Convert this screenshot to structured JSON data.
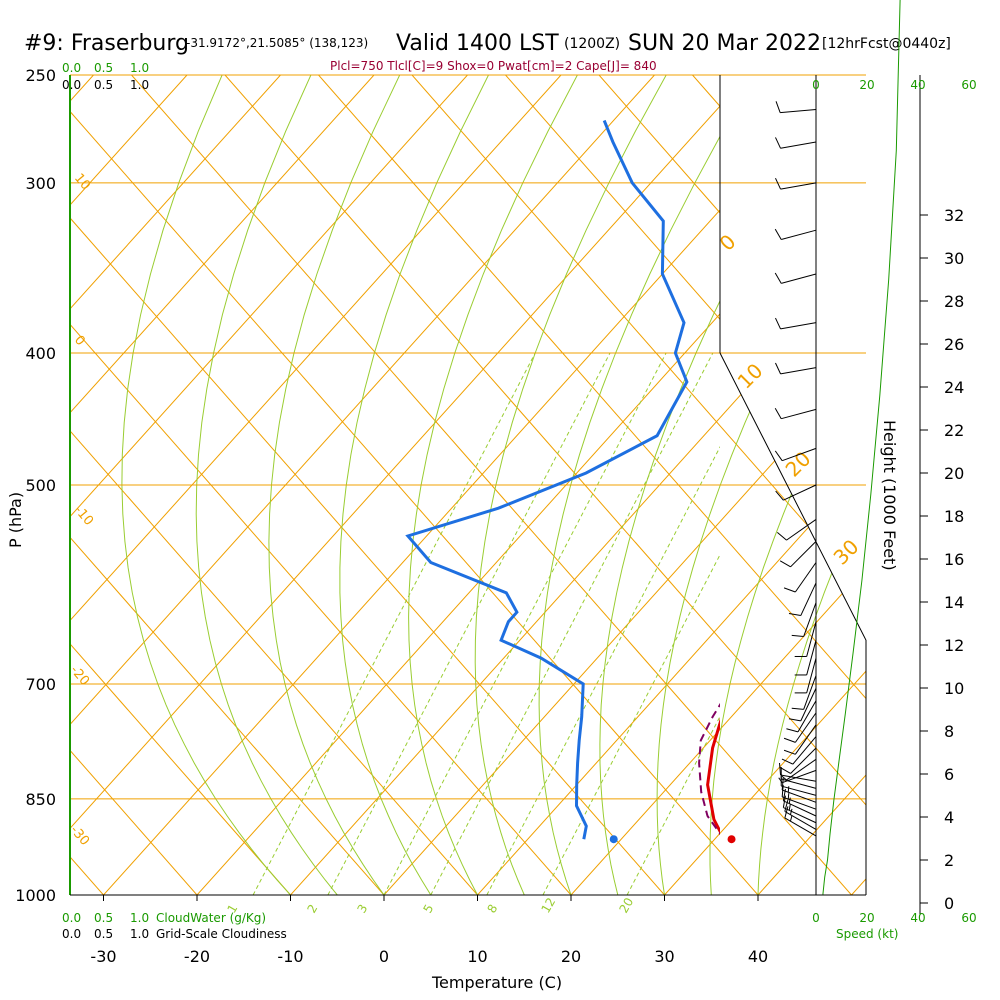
{
  "header": {
    "station": "#9: Fraserburg",
    "coords": "-31.9172°,21.5085° (138,123)",
    "valid": "Valid 1400 LST",
    "utc": "(1200Z)",
    "date": "SUN 20 Mar 2022",
    "forecast": "[12hrFcst@0440z]",
    "indices": "Plcl=750 Tlcl[C]=9 Shox=0 Pwat[cm]=2 Cape[J]= 840"
  },
  "colors": {
    "temperature": "#e00000",
    "dewpoint": "#1e6fe0",
    "parcel": "#800060",
    "isotherm": "#f0a000",
    "dry_adiabat": "#9acd32",
    "mixing_ratio": "#9acd32",
    "wind_speed": "#1a9a00",
    "indices": "#990033"
  },
  "chart_data": {
    "type": "line",
    "title": "#9: Fraserburg",
    "xlabel": "Temperature (C)",
    "ylabel": "P (hPa)",
    "y2label": "Height (1000 Feet)",
    "x_ticks": [
      -30,
      -20,
      -10,
      0,
      10,
      20,
      30,
      40
    ],
    "p_ticks": [
      250,
      300,
      400,
      500,
      700,
      850,
      1000
    ],
    "height_ticks": [
      0,
      2,
      4,
      6,
      8,
      10,
      12,
      14,
      16,
      18,
      20,
      22,
      24,
      26,
      28,
      30,
      32
    ],
    "xlim": [
      -34,
      36
    ],
    "ylim_hpa": [
      1000,
      250
    ],
    "top_scale_labels": [
      "0.0",
      "0.5",
      "1.0"
    ],
    "bottom_cloudwater_label": "CloudWater (g/Kg)",
    "bottom_cloudiness_label": "Grid-Scale Cloudiness",
    "speed_ticks": [
      0,
      20,
      40,
      60
    ],
    "speed_label": "Speed (kt)",
    "mixing_ratio_labels": [
      "1",
      "2",
      "3",
      "5",
      "8",
      "12",
      "20"
    ],
    "dry_adiabat_labels": [
      "10",
      "0",
      "-10",
      "-20",
      "-30"
    ],
    "isotherm_labels": [
      "0",
      "10",
      "20",
      "30"
    ],
    "series": [
      {
        "key": "temperature",
        "points": [
          [
            31,
            910
          ],
          [
            28,
            880
          ],
          [
            24,
            830
          ],
          [
            21,
            780
          ],
          [
            19,
            740
          ],
          [
            17,
            700
          ],
          [
            15,
            660
          ],
          [
            14,
            620
          ],
          [
            12,
            580
          ],
          [
            10,
            540
          ],
          [
            8,
            500
          ],
          [
            6,
            460
          ],
          [
            4,
            420
          ],
          [
            2,
            380
          ],
          [
            -1,
            340
          ],
          [
            -4,
            300
          ],
          [
            -7,
            270
          ]
        ]
      },
      {
        "key": "dewpoint",
        "points": [
          [
            16,
            910
          ],
          [
            15,
            890
          ],
          [
            12,
            860
          ],
          [
            10,
            830
          ],
          [
            8,
            800
          ],
          [
            6,
            770
          ],
          [
            4,
            740
          ],
          [
            1,
            700
          ],
          [
            -6,
            670
          ],
          [
            -12,
            650
          ],
          [
            -13,
            630
          ],
          [
            -13,
            620
          ],
          [
            -16,
            600
          ],
          [
            -27,
            570
          ],
          [
            -32,
            545
          ],
          [
            -25,
            520
          ],
          [
            -19,
            490
          ],
          [
            -15,
            460
          ],
          [
            -17,
            420
          ],
          [
            -21,
            400
          ],
          [
            -23,
            380
          ],
          [
            -30,
            350
          ],
          [
            -35,
            320
          ],
          [
            -42,
            300
          ],
          [
            -48,
            280
          ],
          [
            -51,
            270
          ]
        ]
      },
      {
        "key": "parcel",
        "points": [
          [
            31,
            910
          ],
          [
            27,
            875
          ],
          [
            24,
            840
          ],
          [
            21,
            800
          ],
          [
            19,
            770
          ],
          [
            18,
            740
          ],
          [
            17,
            700
          ],
          [
            16,
            680
          ],
          [
            13,
            640
          ],
          [
            11,
            600
          ],
          [
            9,
            560
          ],
          [
            7,
            520
          ],
          [
            5,
            480
          ],
          [
            3,
            450
          ],
          [
            1,
            410
          ],
          [
            -2,
            370
          ],
          [
            -5,
            330
          ],
          [
            -9,
            290
          ],
          [
            -13,
            270
          ]
        ]
      }
    ],
    "surface_temperature": 31.8,
    "surface_dewpoint": 19.2,
    "speed_profile_kt": [
      [
        0.2,
        2.7
      ],
      [
        0.6,
        3.4
      ],
      [
        1.0,
        4.5
      ],
      [
        1.6,
        5.5
      ],
      [
        2.4,
        7.0
      ],
      [
        3.3,
        9.0
      ],
      [
        4.4,
        11.5
      ],
      [
        5.8,
        14.5
      ],
      [
        7.5,
        18.0
      ],
      [
        9.5,
        21.5
      ],
      [
        11.8,
        25.0
      ],
      [
        14.5,
        28.5
      ],
      [
        17.5,
        31.5
      ],
      [
        21.0,
        33.0
      ]
    ],
    "wind_barbs": [
      {
        "p": 905,
        "dir": 300,
        "spd": 15
      },
      {
        "p": 895,
        "dir": 300,
        "spd": 15
      },
      {
        "p": 885,
        "dir": 295,
        "spd": 15
      },
      {
        "p": 875,
        "dir": 295,
        "spd": 15
      },
      {
        "p": 865,
        "dir": 290,
        "spd": 15
      },
      {
        "p": 855,
        "dir": 290,
        "spd": 15
      },
      {
        "p": 845,
        "dir": 285,
        "spd": 10
      },
      {
        "p": 835,
        "dir": 285,
        "spd": 10
      },
      {
        "p": 825,
        "dir": 280,
        "spd": 10
      },
      {
        "p": 810,
        "dir": 250,
        "spd": 5
      },
      {
        "p": 795,
        "dir": 235,
        "spd": 5
      },
      {
        "p": 780,
        "dir": 225,
        "spd": 10
      },
      {
        "p": 765,
        "dir": 220,
        "spd": 10
      },
      {
        "p": 750,
        "dir": 215,
        "spd": 10
      },
      {
        "p": 735,
        "dir": 215,
        "spd": 10
      },
      {
        "p": 720,
        "dir": 210,
        "spd": 10
      },
      {
        "p": 705,
        "dir": 205,
        "spd": 10
      },
      {
        "p": 690,
        "dir": 200,
        "spd": 10
      },
      {
        "p": 670,
        "dir": 195,
        "spd": 10
      },
      {
        "p": 650,
        "dir": 195,
        "spd": 10
      },
      {
        "p": 630,
        "dir": 195,
        "spd": 10
      },
      {
        "p": 610,
        "dir": 200,
        "spd": 10
      },
      {
        "p": 590,
        "dir": 205,
        "spd": 10
      },
      {
        "p": 570,
        "dir": 215,
        "spd": 10
      },
      {
        "p": 550,
        "dir": 225,
        "spd": 10
      },
      {
        "p": 530,
        "dir": 235,
        "spd": 10
      },
      {
        "p": 500,
        "dir": 245,
        "spd": 10
      },
      {
        "p": 470,
        "dir": 250,
        "spd": 10
      },
      {
        "p": 440,
        "dir": 255,
        "spd": 10
      },
      {
        "p": 410,
        "dir": 260,
        "spd": 10
      },
      {
        "p": 380,
        "dir": 260,
        "spd": 10
      },
      {
        "p": 350,
        "dir": 255,
        "spd": 10
      },
      {
        "p": 325,
        "dir": 255,
        "spd": 10
      },
      {
        "p": 300,
        "dir": 260,
        "spd": 10
      },
      {
        "p": 280,
        "dir": 260,
        "spd": 10
      },
      {
        "p": 265,
        "dir": 265,
        "spd": 10
      }
    ]
  }
}
